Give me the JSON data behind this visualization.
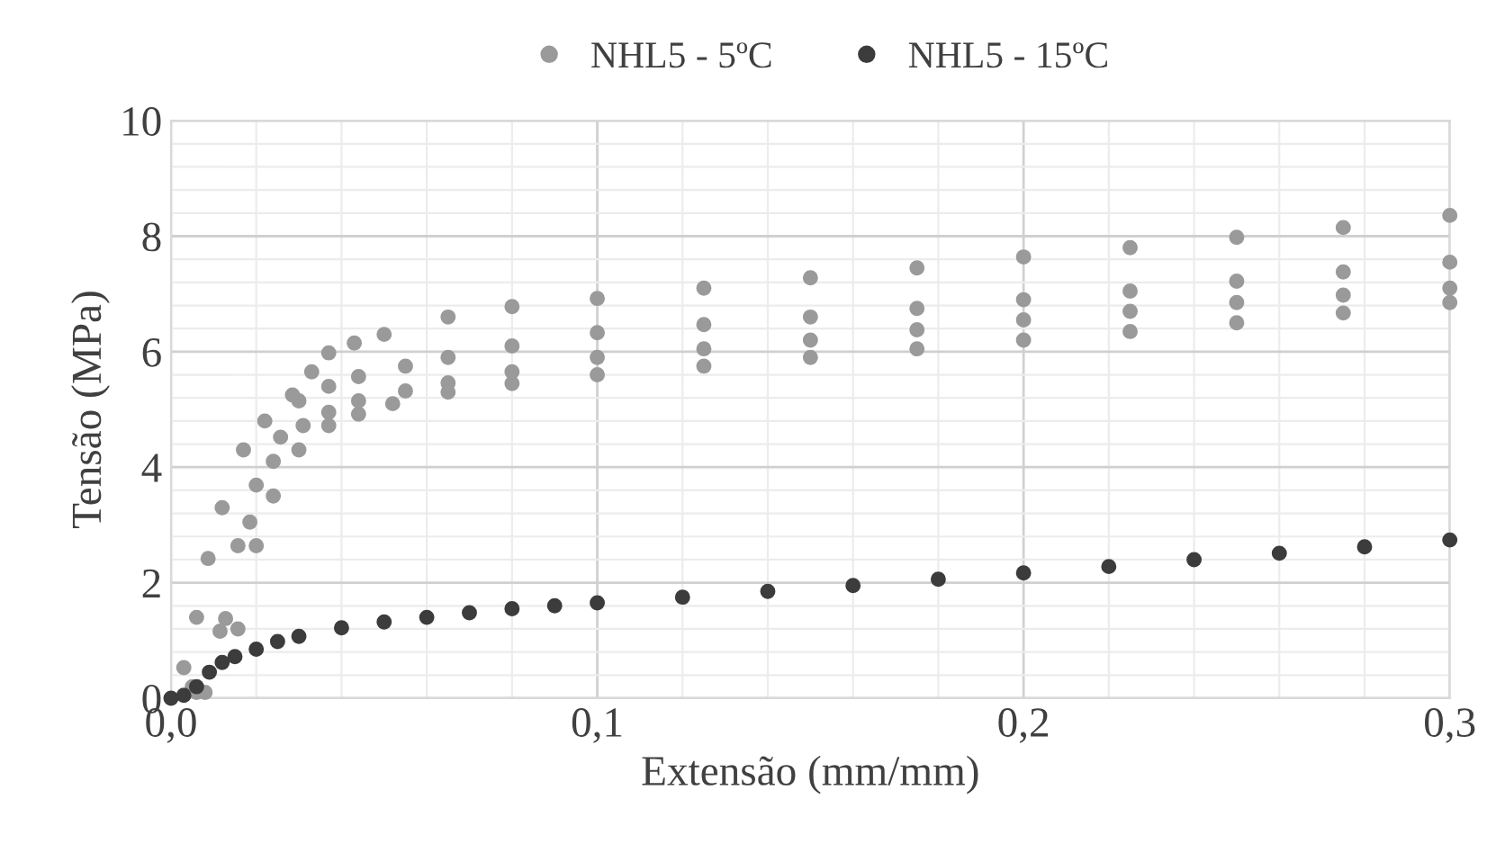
{
  "chart_data": {
    "type": "scatter",
    "xlabel": "Extensão (mm/mm)",
    "ylabel": "Tensão (MPa)",
    "xlim": [
      0,
      0.3
    ],
    "ylim": [
      0,
      10
    ],
    "xticks": [
      {
        "value": 0,
        "label": "0,0"
      },
      {
        "value": 0.1,
        "label": "0,1"
      },
      {
        "value": 0.2,
        "label": "0,2"
      },
      {
        "value": 0.3,
        "label": "0,3"
      }
    ],
    "yticks": [
      0,
      2,
      4,
      6,
      8,
      10
    ],
    "grid": true,
    "legend": "top",
    "marker": "circle",
    "series": [
      {
        "name": "NHL5 - 5ºC",
        "color": "#9a9a9a",
        "x": [
          0.003,
          0.006,
          0.0087,
          0.012,
          0.017,
          0.022,
          0.0285,
          0.033,
          0.037,
          0.043,
          0.05,
          0.065,
          0.08,
          0.1,
          0.125,
          0.15,
          0.175,
          0.2,
          0.225,
          0.25,
          0.275,
          0.3,
          0.005,
          0.0115,
          0.0157,
          0.02,
          0.0257,
          0.03,
          0.037,
          0.044,
          0.055,
          0.065,
          0.08,
          0.1,
          0.125,
          0.15,
          0.175,
          0.2,
          0.225,
          0.25,
          0.275,
          0.3,
          0.006,
          0.0128,
          0.0185,
          0.024,
          0.031,
          0.037,
          0.044,
          0.055,
          0.065,
          0.08,
          0.1,
          0.125,
          0.15,
          0.175,
          0.2,
          0.225,
          0.25,
          0.275,
          0.3,
          0.008,
          0.0157,
          0.02,
          0.024,
          0.03,
          0.037,
          0.044,
          0.052,
          0.065,
          0.08,
          0.1,
          0.125,
          0.15,
          0.175,
          0.2,
          0.225,
          0.25,
          0.275,
          0.3
        ],
        "values": [
          0.53,
          1.4,
          2.42,
          3.3,
          4.3,
          4.8,
          5.25,
          5.65,
          5.98,
          6.15,
          6.3,
          6.6,
          6.78,
          6.92,
          7.1,
          7.28,
          7.45,
          7.64,
          7.8,
          7.98,
          8.15,
          8.36,
          0.2,
          1.16,
          2.64,
          3.69,
          4.52,
          5.15,
          5.4,
          5.57,
          5.75,
          5.9,
          6.1,
          6.33,
          6.47,
          6.6,
          6.75,
          6.9,
          7.05,
          7.22,
          7.38,
          7.55,
          0.1,
          1.38,
          3.05,
          4.1,
          4.72,
          4.95,
          5.15,
          5.32,
          5.46,
          5.65,
          5.9,
          6.05,
          6.2,
          6.38,
          6.55,
          6.7,
          6.85,
          6.98,
          7.1,
          0.1,
          1.2,
          2.64,
          3.5,
          4.3,
          4.72,
          4.92,
          5.1,
          5.3,
          5.45,
          5.6,
          5.75,
          5.9,
          6.05,
          6.2,
          6.35,
          6.5,
          6.67,
          6.85
        ]
      },
      {
        "name": "NHL5 - 15ºC",
        "color": "#3c3c3c",
        "x": [
          0,
          0.003,
          0.006,
          0.009,
          0.012,
          0.015,
          0.02,
          0.025,
          0.03,
          0.04,
          0.05,
          0.06,
          0.07,
          0.08,
          0.09,
          0.1,
          0.12,
          0.14,
          0.16,
          0.18,
          0.2,
          0.22,
          0.24,
          0.26,
          0.28,
          0.3
        ],
        "values": [
          0,
          0.05,
          0.2,
          0.45,
          0.62,
          0.72,
          0.85,
          0.98,
          1.07,
          1.22,
          1.32,
          1.4,
          1.48,
          1.55,
          1.6,
          1.65,
          1.75,
          1.85,
          1.95,
          2.06,
          2.17,
          2.28,
          2.4,
          2.51,
          2.62,
          2.74
        ]
      }
    ]
  }
}
